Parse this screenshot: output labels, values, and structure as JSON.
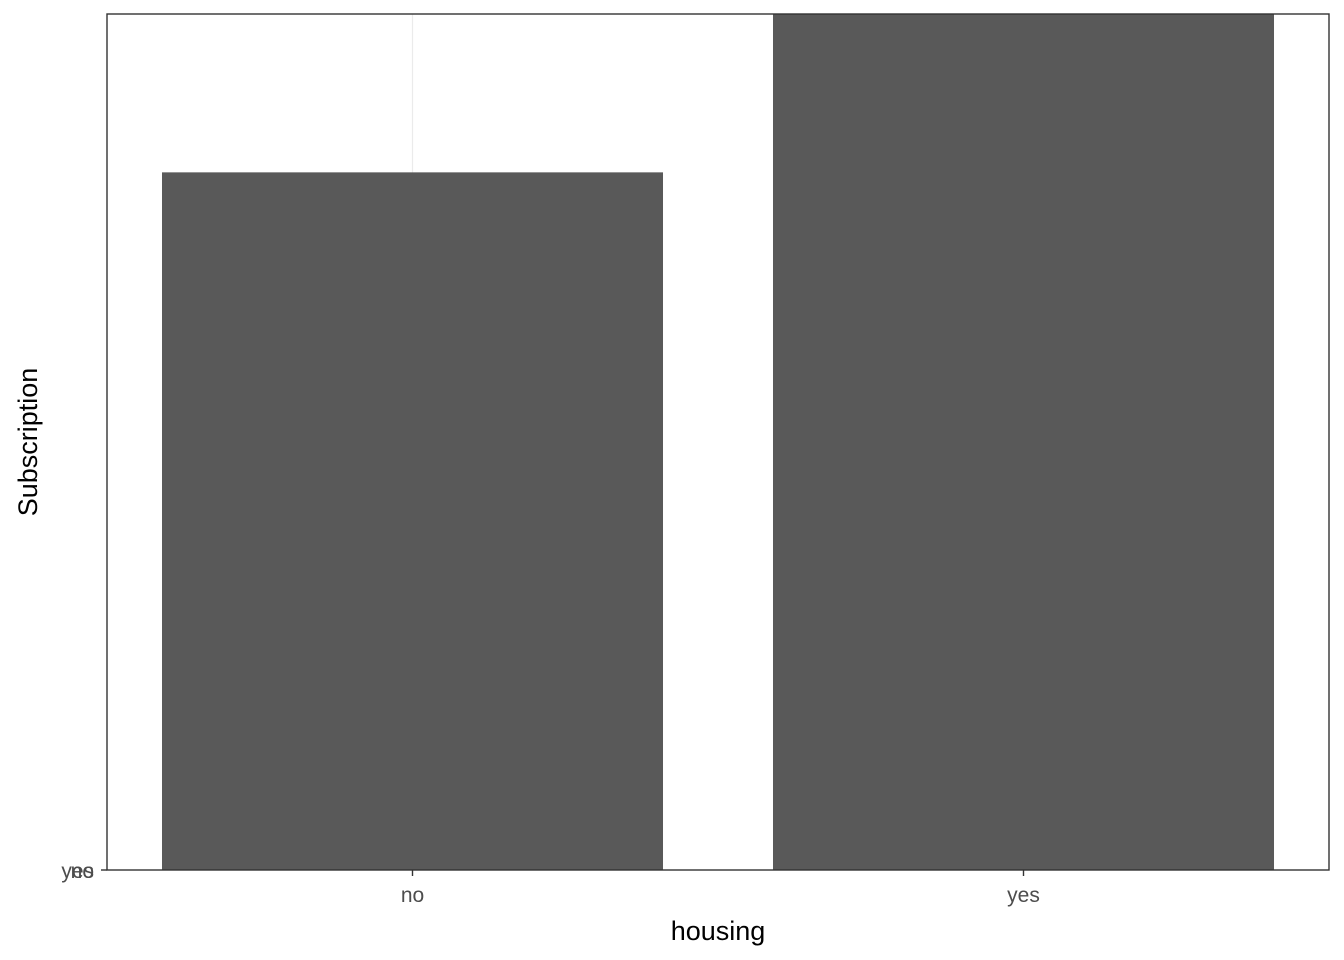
{
  "chart_data": {
    "type": "bar",
    "title": "",
    "xlabel": "housing",
    "ylabel": "Subscription",
    "categories": [
      "no",
      "yes"
    ],
    "values": [
      0.815,
      1.0
    ],
    "value_note": "y is a discrete axis with labels 'no' and 'yes' overplotted at the baseline; bar heights shown relative to the taller bar",
    "y_tick_labels": [
      "no",
      "yes"
    ],
    "ylim": [
      0,
      1.0
    ],
    "grid": true,
    "legend": "none",
    "colors": {
      "bar": "#595959",
      "panel_border": "#333333",
      "grid": "#ebebeb",
      "tick_text": "#4d4d4d",
      "axis_title": "#000000"
    }
  }
}
